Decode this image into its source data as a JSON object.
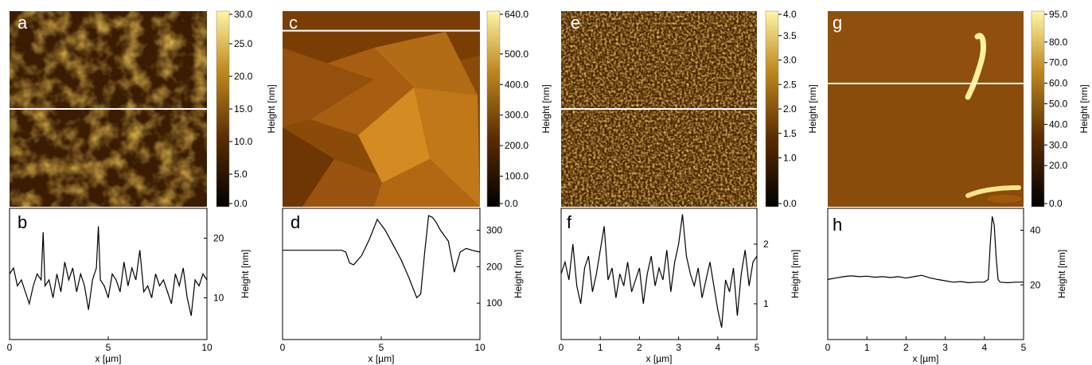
{
  "figure": {
    "colorbar_title": "Height [nm]",
    "x_axis_title": "x [µm]",
    "profile_y_title": "Height [nm]"
  },
  "panels": [
    {
      "image_letter": "a",
      "profile_letter": "b",
      "colorbar_ticks": [
        "30.0",
        "25.0",
        "20.0",
        "15.0",
        "10.0",
        "5.0",
        "0.0"
      ],
      "colorbar_values": [
        30,
        25,
        20,
        15,
        10,
        5,
        0
      ],
      "colorbar_range": [
        0,
        30
      ],
      "scan_line_fraction": 0.5
    },
    {
      "image_letter": "c",
      "profile_letter": "d",
      "colorbar_ticks": [
        "640.0",
        "500.0",
        "400.0",
        "300.0",
        "200.0",
        "100.0",
        "0.0"
      ],
      "colorbar_values": [
        640,
        500,
        400,
        300,
        200,
        100,
        0
      ],
      "colorbar_range": [
        0,
        640
      ],
      "scan_line_fraction": 0.1
    },
    {
      "image_letter": "e",
      "profile_letter": "f",
      "colorbar_ticks": [
        "4.0",
        "3.5",
        "3.0",
        "2.5",
        "2.0",
        "1.5",
        "1.0",
        "0.0"
      ],
      "colorbar_values": [
        4,
        3.5,
        3,
        2.5,
        2,
        1.5,
        1,
        0
      ],
      "colorbar_range": [
        0,
        4
      ],
      "scan_line_fraction": 0.5
    },
    {
      "image_letter": "g",
      "profile_letter": "h",
      "colorbar_ticks": [
        "95.0",
        "80.0",
        "70.0",
        "60.0",
        "50.0",
        "40.0",
        "30.0",
        "20.0",
        "0.0"
      ],
      "colorbar_values": [
        95,
        80,
        70,
        60,
        50,
        40,
        30,
        20,
        0
      ],
      "colorbar_range": [
        0,
        95
      ],
      "scan_line_fraction": 0.37
    }
  ],
  "chart_data": [
    {
      "type": "line",
      "panel": "b",
      "xlabel": "x [µm]",
      "ylabel": "Height [nm]",
      "xlim": [
        0,
        10
      ],
      "ylim": [
        3,
        25
      ],
      "xticks": [
        "0",
        "5",
        "10"
      ],
      "yticks": [
        "10",
        "20"
      ],
      "x": [
        0,
        0.2,
        0.4,
        0.6,
        0.8,
        1.0,
        1.2,
        1.4,
        1.6,
        1.7,
        1.8,
        2.0,
        2.2,
        2.4,
        2.6,
        2.8,
        3.0,
        3.2,
        3.4,
        3.6,
        3.8,
        4.0,
        4.2,
        4.4,
        4.5,
        4.6,
        4.8,
        5.0,
        5.2,
        5.4,
        5.6,
        5.8,
        6.0,
        6.2,
        6.4,
        6.6,
        6.8,
        7.0,
        7.2,
        7.4,
        7.6,
        7.8,
        8.0,
        8.2,
        8.4,
        8.6,
        8.8,
        9.0,
        9.2,
        9.4,
        9.6,
        9.8,
        10.0
      ],
      "y": [
        14,
        15,
        12,
        13,
        11,
        9,
        12,
        14,
        13,
        21,
        12,
        13,
        10,
        14,
        11,
        16,
        13,
        15,
        11,
        14,
        12,
        8,
        13,
        15,
        22,
        13,
        12,
        10,
        14,
        13,
        11,
        16,
        12,
        15,
        13,
        18,
        11,
        12,
        10,
        14,
        12,
        13,
        11,
        9,
        14,
        12,
        15,
        10,
        7,
        13,
        12,
        14,
        13
      ]
    },
    {
      "type": "line",
      "panel": "d",
      "xlabel": "x [µm]",
      "ylabel": "Height [nm]",
      "xlim": [
        0,
        10
      ],
      "ylim": [
        0,
        360
      ],
      "xticks": [
        "0",
        "5",
        "10"
      ],
      "yticks": [
        "100",
        "200",
        "300"
      ],
      "x": [
        0,
        1,
        2,
        3,
        3.2,
        3.4,
        3.6,
        4.0,
        4.4,
        4.8,
        5.2,
        5.6,
        6.0,
        6.4,
        6.8,
        7.0,
        7.2,
        7.4,
        7.6,
        7.8,
        8.0,
        8.4,
        8.7,
        9.0,
        9.3,
        9.6,
        10.0
      ],
      "y": [
        245,
        245,
        245,
        245,
        240,
        210,
        205,
        230,
        275,
        330,
        300,
        260,
        220,
        170,
        115,
        125,
        240,
        340,
        335,
        320,
        300,
        270,
        185,
        240,
        250,
        245,
        240
      ]
    },
    {
      "type": "line",
      "panel": "f",
      "xlabel": "x [µm]",
      "ylabel": "Height [nm]",
      "xlim": [
        0,
        5
      ],
      "ylim": [
        0.4,
        2.6
      ],
      "xticks": [
        "0",
        "1",
        "2",
        "3",
        "4",
        "5"
      ],
      "yticks": [
        "1",
        "2"
      ],
      "x": [
        0,
        0.1,
        0.2,
        0.3,
        0.4,
        0.5,
        0.6,
        0.7,
        0.8,
        0.9,
        1.0,
        1.1,
        1.2,
        1.3,
        1.4,
        1.5,
        1.6,
        1.7,
        1.8,
        1.9,
        2.0,
        2.1,
        2.2,
        2.3,
        2.4,
        2.5,
        2.6,
        2.7,
        2.8,
        2.9,
        3.0,
        3.1,
        3.2,
        3.3,
        3.4,
        3.5,
        3.6,
        3.7,
        3.8,
        3.9,
        4.0,
        4.1,
        4.2,
        4.3,
        4.4,
        4.5,
        4.6,
        4.7,
        4.8,
        4.9,
        5.0
      ],
      "y": [
        1.5,
        1.7,
        1.4,
        2.0,
        1.3,
        1.0,
        1.6,
        1.8,
        1.2,
        1.5,
        1.9,
        2.3,
        1.4,
        1.6,
        1.1,
        1.5,
        1.3,
        1.7,
        1.2,
        1.4,
        1.6,
        1.0,
        1.5,
        1.8,
        1.3,
        1.6,
        1.4,
        1.9,
        1.2,
        1.7,
        2.0,
        2.5,
        1.8,
        1.5,
        1.3,
        1.6,
        1.1,
        1.4,
        1.7,
        1.3,
        0.9,
        0.6,
        1.4,
        1.2,
        1.6,
        0.8,
        1.5,
        1.9,
        1.3,
        1.7,
        1.8
      ]
    },
    {
      "type": "line",
      "panel": "h",
      "xlabel": "x [µm]",
      "ylabel": "Height [nm]",
      "xlim": [
        0,
        5
      ],
      "ylim": [
        0,
        48
      ],
      "xticks": [
        "0",
        "1",
        "2",
        "3",
        "4",
        "5"
      ],
      "yticks": [
        "20",
        "40"
      ],
      "x": [
        0,
        0.2,
        0.4,
        0.6,
        0.8,
        1.0,
        1.2,
        1.4,
        1.6,
        1.8,
        2.0,
        2.2,
        2.4,
        2.6,
        2.8,
        3.0,
        3.2,
        3.4,
        3.6,
        3.8,
        4.0,
        4.1,
        4.15,
        4.2,
        4.25,
        4.3,
        4.35,
        4.4,
        4.6,
        4.8,
        5.0
      ],
      "y": [
        22,
        22.5,
        23,
        23.3,
        23,
        23.2,
        22.8,
        23,
        22.7,
        23,
        22.5,
        23,
        23.5,
        22.6,
        22,
        21.5,
        21,
        21.2,
        20.8,
        21,
        21,
        22,
        35,
        45,
        42,
        30,
        22,
        21,
        20.8,
        21,
        21
      ]
    }
  ]
}
